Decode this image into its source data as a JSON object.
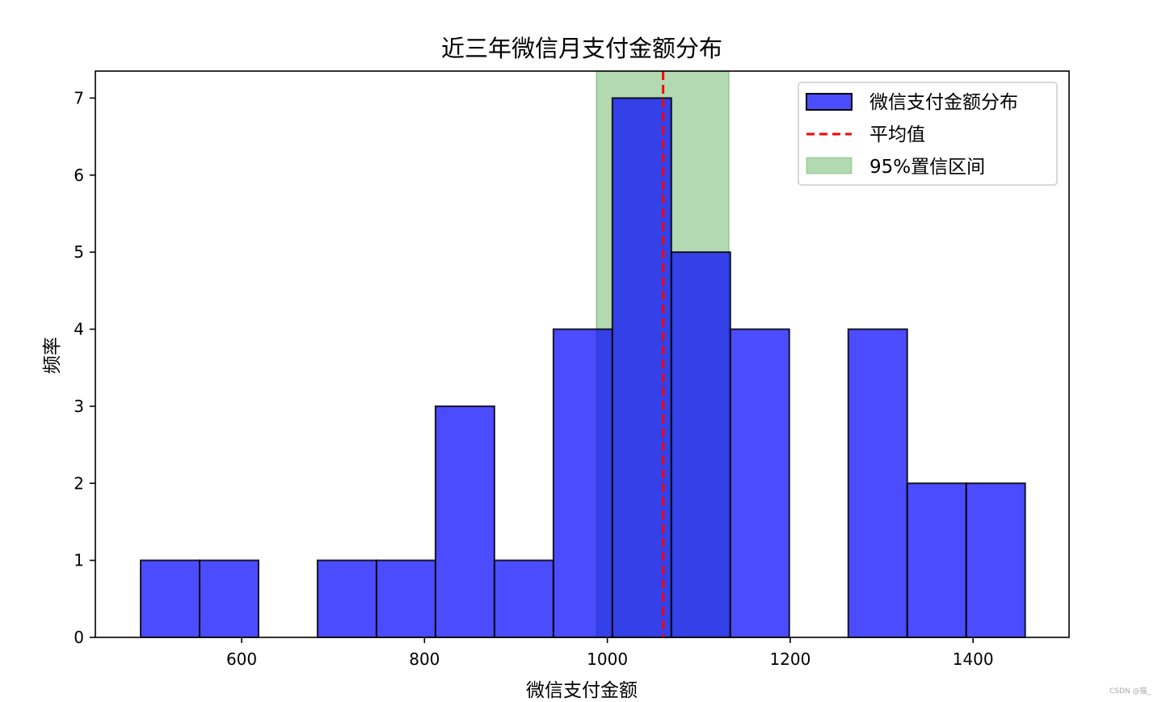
{
  "chart_data": {
    "type": "bar",
    "title": "近三年微信月支付金额分布",
    "xlabel": "微信支付金额",
    "ylabel": "频率",
    "xlim": [
      440,
      1505
    ],
    "ylim": [
      0,
      7.35
    ],
    "xticks": [
      600,
      800,
      1000,
      1200,
      1400
    ],
    "yticks": [
      0,
      1,
      2,
      3,
      4,
      5,
      6,
      7
    ],
    "bins": [
      {
        "x0": 489.5,
        "x1": 554.0,
        "count": 1
      },
      {
        "x0": 554.0,
        "x1": 618.5,
        "count": 1
      },
      {
        "x0": 618.5,
        "x1": 683.0,
        "count": 0
      },
      {
        "x0": 683.0,
        "x1": 747.5,
        "count": 1
      },
      {
        "x0": 747.5,
        "x1": 812.0,
        "count": 1
      },
      {
        "x0": 812.0,
        "x1": 876.5,
        "count": 3
      },
      {
        "x0": 876.5,
        "x1": 941.0,
        "count": 1
      },
      {
        "x0": 941.0,
        "x1": 1005.5,
        "count": 4
      },
      {
        "x0": 1005.5,
        "x1": 1070.0,
        "count": 7
      },
      {
        "x0": 1070.0,
        "x1": 1134.5,
        "count": 5
      },
      {
        "x0": 1134.5,
        "x1": 1199.0,
        "count": 4
      },
      {
        "x0": 1199.0,
        "x1": 1263.5,
        "count": 0
      },
      {
        "x0": 1263.5,
        "x1": 1328.0,
        "count": 4
      },
      {
        "x0": 1328.0,
        "x1": 1392.5,
        "count": 2
      },
      {
        "x0": 1392.5,
        "x1": 1457.0,
        "count": 2
      }
    ],
    "mean": 1061,
    "ci95": [
      988,
      1133
    ],
    "colors": {
      "bar": "#0000ff",
      "bar_edge": "#000000",
      "mean_line": "#ff0000",
      "ci_band": "#008000"
    },
    "legend": {
      "placement": "top-right",
      "entries": [
        "微信支付金额分布",
        "平均值",
        "95%置信区间"
      ]
    }
  },
  "watermark": "CSDN @猫_"
}
